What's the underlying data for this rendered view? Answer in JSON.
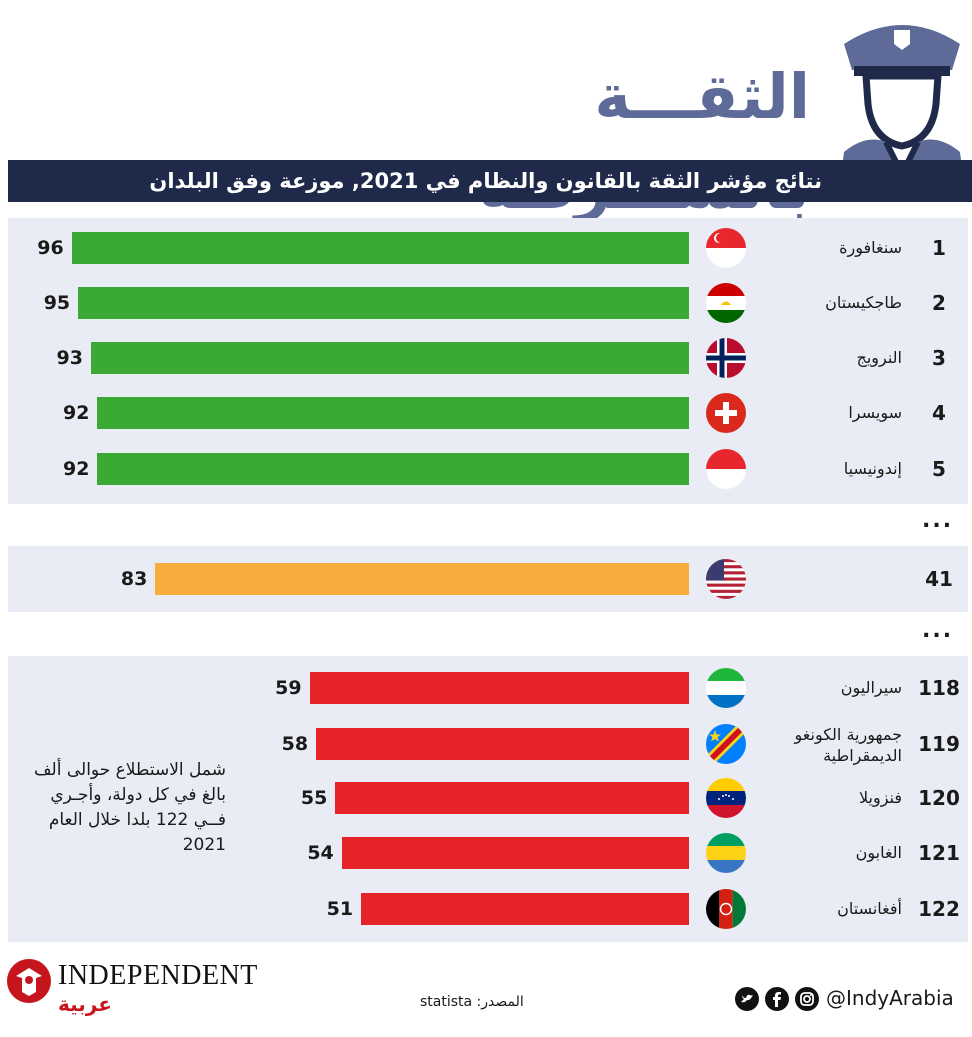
{
  "header": {
    "title": "الثقـــة بالشـــرطة",
    "subtitle": "نتائج مؤشر الثقة بالقانون والنظام في 2021, موزعة وفق البلدان"
  },
  "ellipsis": "...",
  "chart_data": {
    "type": "bar",
    "orientation": "horizontal",
    "value_min": 0,
    "value_max": 100,
    "rows": [
      {
        "rank": "1",
        "country": "سنغافورة",
        "value": 96,
        "color": "#3aaa35",
        "flag": "singapore"
      },
      {
        "rank": "2",
        "country": "طاجكيستان",
        "value": 95,
        "color": "#3aaa35",
        "flag": "tajikistan"
      },
      {
        "rank": "3",
        "country": "النرويج",
        "value": 93,
        "color": "#3aaa35",
        "flag": "norway"
      },
      {
        "rank": "4",
        "country": "سويسرا",
        "value": 92,
        "color": "#3aaa35",
        "flag": "switzerland"
      },
      {
        "rank": "5",
        "country": "إندونيسيا",
        "value": 92,
        "color": "#3aaa35",
        "flag": "indonesia"
      },
      {
        "rank": "41",
        "country": "",
        "value": 83,
        "color": "#f6ad3c",
        "flag": "usa"
      },
      {
        "rank": "118",
        "country": "سيراليون",
        "value": 59,
        "color": "#e52329",
        "flag": "sierra-leone"
      },
      {
        "rank": "119",
        "country": "جمهورية الكونغو الديمقراطية",
        "value": 58,
        "color": "#e52329",
        "flag": "dr-congo"
      },
      {
        "rank": "120",
        "country": "فنزويلا",
        "value": 55,
        "color": "#e52329",
        "flag": "venezuela"
      },
      {
        "rank": "121",
        "country": "الغابون",
        "value": 54,
        "color": "#e52329",
        "flag": "gabon"
      },
      {
        "rank": "122",
        "country": "أفغانستان",
        "value": 51,
        "color": "#e52329",
        "flag": "afghanistan"
      }
    ]
  },
  "note": "شمل الاستطلاع حوالى ألف بالغ في كل دولة، وأجـري فــي 122 بلدا خلال العام 2021",
  "footer": {
    "source": "المصدر: statista",
    "handle": "@IndyArabia",
    "logo": "INDEPENDENT",
    "logo_sub": "عربية",
    "social_icons": [
      "twitter-icon",
      "facebook-icon",
      "instagram-icon"
    ]
  }
}
